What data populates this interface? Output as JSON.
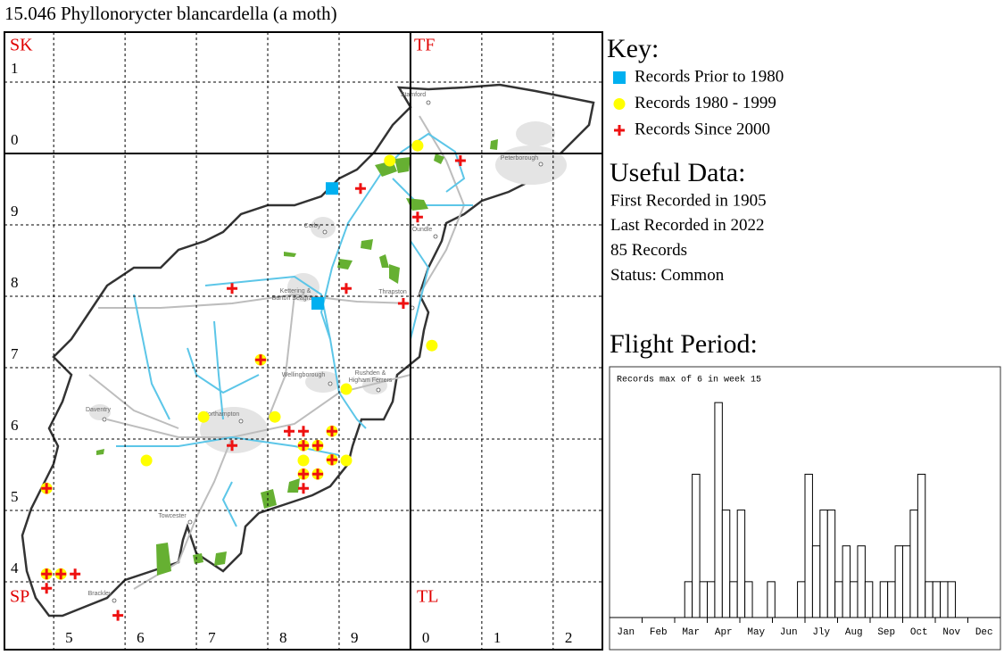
{
  "chart_data": [
    {
      "type": "scatter",
      "title": "15.046 Phyllonorycter blancardella (a moth)",
      "legend_title": "Key:",
      "xlim": [
        4.31,
        12.69
      ],
      "ylim": [
        3.05,
        11.7
      ],
      "xticks": [
        5,
        6,
        7,
        8,
        9,
        {
          "value": 10,
          "label": "0"
        },
        {
          "value": 11,
          "label": "1"
        },
        {
          "value": 12,
          "label": "2"
        }
      ],
      "yticks": [
        4,
        5,
        6,
        7,
        8,
        9,
        {
          "value": 10,
          "label": "0"
        },
        {
          "value": 11,
          "label": "1"
        }
      ],
      "grid": true,
      "hectads": [
        "SK",
        "TF",
        "SP",
        "TL"
      ],
      "places": [
        "Stamford",
        "Peterborough",
        "Corby",
        "Oundle",
        "Kettering &",
        "Barton Seagrave",
        "Thrapston",
        "Wellingborough",
        "Rushden &",
        "Higham Ferrers",
        "Daventry",
        "Northampton",
        "Towcester",
        "Brackley"
      ],
      "series": [
        {
          "name": "Records Prior to 1980",
          "color": "#00b0f0",
          "marker": "square",
          "x": [
            8.9,
            8.7
          ],
          "y": [
            9.51,
            7.9
          ]
        },
        {
          "name": "Records 1980 - 1999",
          "color": "#ffff00",
          "marker": "circle",
          "x": [
            10.1,
            9.71,
            10.3,
            9.1,
            7.1,
            8.1,
            6.3,
            8.5,
            9.1,
            7.9,
            8.9,
            8.5,
            8.7,
            8.9,
            8.7,
            8.5,
            4.9,
            5.1,
            4.9
          ],
          "y": [
            10.11,
            9.9,
            7.31,
            6.7,
            6.31,
            6.31,
            5.7,
            5.7,
            5.7,
            7.11,
            6.11,
            5.91,
            5.91,
            5.71,
            5.51,
            5.51,
            5.31,
            4.11,
            4.11
          ]
        },
        {
          "name": "Records Since 2000",
          "color": "#ee1111",
          "marker": "plus",
          "x": [
            10.7,
            9.3,
            10.1,
            7.5,
            9.1,
            9.9,
            7.9,
            8.3,
            8.5,
            8.9,
            8.5,
            8.7,
            7.5,
            8.9,
            8.5,
            8.7,
            8.5,
            4.9,
            4.9,
            5.1,
            5.3,
            4.9,
            5.9
          ],
          "y": [
            9.9,
            9.51,
            9.11,
            8.11,
            8.11,
            7.9,
            7.11,
            6.11,
            6.11,
            6.11,
            5.91,
            5.91,
            5.91,
            5.71,
            5.51,
            5.51,
            5.31,
            5.31,
            4.11,
            4.11,
            4.11,
            3.91,
            3.53
          ]
        }
      ]
    },
    {
      "type": "histogram",
      "title": "Flight Period:",
      "annotation": "Records max of 6 in week 15",
      "color": "#ffffff",
      "bins": [
        1,
        2,
        3,
        4,
        5,
        6,
        7,
        8,
        9,
        10,
        11,
        12,
        13,
        14,
        15,
        16,
        17,
        18,
        19,
        20,
        21,
        22,
        23,
        24,
        25,
        26,
        27,
        28,
        29,
        30,
        31,
        32,
        33,
        34,
        35,
        36,
        37,
        38,
        39,
        40,
        41,
        42,
        43,
        44,
        45,
        46,
        47,
        48,
        49,
        50,
        51,
        52,
        53
      ],
      "values": [
        0,
        0,
        0,
        0,
        0,
        0,
        0,
        0,
        0,
        0,
        1,
        4,
        1,
        1,
        6,
        3,
        1,
        3,
        1,
        0,
        0,
        1,
        0,
        0,
        0,
        1,
        4,
        2,
        3,
        3,
        1,
        2,
        1,
        2,
        1,
        0,
        1,
        1,
        2,
        2,
        3,
        4,
        1,
        1,
        1,
        1,
        0,
        0,
        0,
        0,
        0,
        0
      ],
      "xlim": [
        1,
        53
      ],
      "ylim": [
        0,
        7
      ],
      "xticks": [
        {
          "value": 3.17,
          "label": "Jan"
        },
        {
          "value": 7.5,
          "label": "Feb"
        },
        {
          "value": 11.83,
          "label": "Mar"
        },
        {
          "value": 16.17,
          "label": "Apr"
        },
        {
          "value": 20.5,
          "label": "May"
        },
        {
          "value": 24.83,
          "label": "Jun"
        },
        {
          "value": 29.17,
          "label": "Jly"
        },
        {
          "value": 33.5,
          "label": "Aug"
        },
        {
          "value": 37.83,
          "label": "Sep"
        },
        {
          "value": 42.17,
          "label": "Oct"
        },
        {
          "value": 46.5,
          "label": "Nov"
        },
        {
          "value": 50.83,
          "label": "Dec"
        }
      ]
    }
  ],
  "useful_data": {
    "title": "Useful Data:",
    "lines": [
      "First Recorded in 1905",
      "Last Recorded in 2022",
      "85 Records",
      "Status: Common"
    ]
  }
}
